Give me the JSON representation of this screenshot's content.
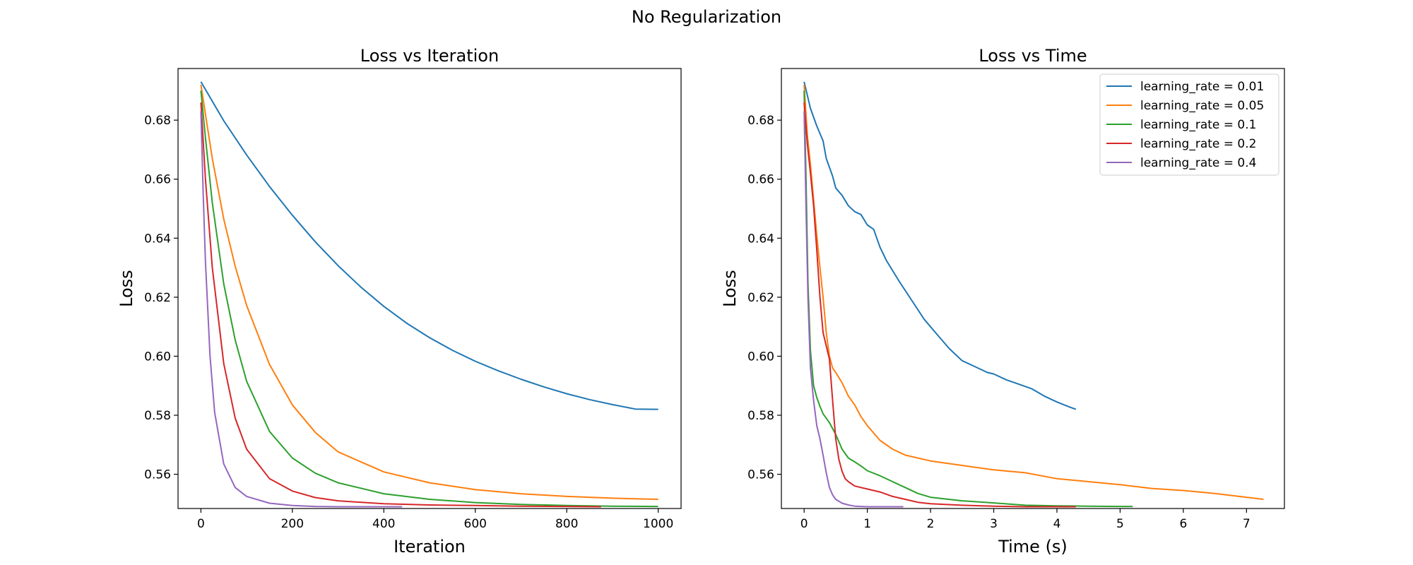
{
  "suptitle": "No Regularization",
  "colors": {
    "lr_0.01": "#1f77b4",
    "lr_0.05": "#ff7f0e",
    "lr_0.1": "#2ca02c",
    "lr_0.2": "#d62728",
    "lr_0.4": "#9467bd"
  },
  "chart_data": [
    {
      "type": "line",
      "title": "Loss vs Iteration",
      "xlabel": "Iteration",
      "ylabel": "Loss",
      "xlim": [
        -50,
        1050
      ],
      "ylim": [
        0.5484,
        0.6975
      ],
      "xticks": [
        0,
        200,
        400,
        600,
        800,
        1000
      ],
      "yticks": [
        0.56,
        0.58,
        0.6,
        0.62,
        0.64,
        0.66,
        0.68
      ],
      "grid": false,
      "legend": "none",
      "series": [
        {
          "name": "learning_rate = 0.01",
          "color": "#1f77b4",
          "x": [
            0,
            50,
            100,
            150,
            200,
            250,
            300,
            350,
            400,
            450,
            500,
            550,
            600,
            650,
            700,
            750,
            800,
            850,
            900,
            950,
            1000
          ],
          "y": [
            0.693,
            0.6798,
            0.6682,
            0.6575,
            0.6478,
            0.6388,
            0.6307,
            0.6234,
            0.6169,
            0.6112,
            0.6063,
            0.602,
            0.5983,
            0.5951,
            0.5922,
            0.5896,
            0.5873,
            0.5853,
            0.5836,
            0.5821,
            0.582
          ]
        },
        {
          "name": "learning_rate = 0.05",
          "color": "#ff7f0e",
          "x": [
            0,
            10,
            25,
            50,
            75,
            100,
            150,
            200,
            250,
            300,
            400,
            500,
            600,
            700,
            800,
            900,
            1000
          ],
          "y": [
            0.692,
            0.682,
            0.667,
            0.6465,
            0.6305,
            0.6172,
            0.5972,
            0.5835,
            0.5742,
            0.5676,
            0.5608,
            0.5571,
            0.5548,
            0.5534,
            0.5525,
            0.5519,
            0.5515
          ]
        },
        {
          "name": "learning_rate = 0.1",
          "color": "#2ca02c",
          "x": [
            0,
            10,
            25,
            50,
            75,
            100,
            150,
            200,
            250,
            300,
            400,
            500,
            600,
            700,
            800,
            900,
            1000
          ],
          "y": [
            0.69,
            0.674,
            0.652,
            0.6245,
            0.6055,
            0.5915,
            0.5745,
            0.5655,
            0.5604,
            0.5571,
            0.5534,
            0.5515,
            0.5504,
            0.5498,
            0.5494,
            0.5492,
            0.5491
          ]
        },
        {
          "name": "learning_rate = 0.2",
          "color": "#d62728",
          "x": [
            0,
            10,
            25,
            50,
            75,
            100,
            150,
            200,
            250,
            300,
            400,
            500,
            600,
            700,
            875
          ],
          "y": [
            0.686,
            0.66,
            0.63,
            0.5975,
            0.579,
            0.5685,
            0.5585,
            0.5543,
            0.5521,
            0.551,
            0.55,
            0.5496,
            0.5494,
            0.5492,
            0.549
          ]
        },
        {
          "name": "learning_rate = 0.4",
          "color": "#9467bd",
          "x": [
            0,
            5,
            10,
            20,
            30,
            50,
            75,
            100,
            150,
            200,
            250,
            300,
            350,
            400,
            440
          ],
          "y": [
            0.683,
            0.655,
            0.632,
            0.6,
            0.581,
            0.5635,
            0.5555,
            0.5525,
            0.5502,
            0.5494,
            0.5491,
            0.549,
            0.549,
            0.549,
            0.549
          ]
        }
      ]
    },
    {
      "type": "line",
      "title": "Loss vs Time",
      "xlabel": "Time (s)",
      "ylabel": "Loss",
      "xlim": [
        -0.36,
        7.6
      ],
      "ylim": [
        0.5484,
        0.6975
      ],
      "xticks": [
        0,
        1,
        2,
        3,
        4,
        5,
        6,
        7
      ],
      "yticks": [
        0.56,
        0.58,
        0.6,
        0.62,
        0.64,
        0.66,
        0.68
      ],
      "grid": false,
      "legend": "top-right",
      "series": [
        {
          "name": "learning_rate = 0.01",
          "color": "#1f77b4",
          "x": [
            0,
            0.1,
            0.2,
            0.3,
            0.35,
            0.45,
            0.5,
            0.6,
            0.7,
            0.8,
            0.9,
            1.0,
            1.1,
            1.2,
            1.3,
            1.5,
            1.7,
            1.9,
            2.1,
            2.3,
            2.5,
            2.7,
            2.9,
            3.0,
            3.2,
            3.4,
            3.6,
            3.8,
            4.0,
            4.2,
            4.3
          ],
          "y": [
            0.693,
            0.684,
            0.678,
            0.673,
            0.667,
            0.661,
            0.657,
            0.6545,
            0.651,
            0.649,
            0.648,
            0.6445,
            0.643,
            0.637,
            0.6325,
            0.6255,
            0.619,
            0.6125,
            0.6075,
            0.6025,
            0.5985,
            0.5965,
            0.5945,
            0.594,
            0.592,
            0.5905,
            0.589,
            0.5865,
            0.5845,
            0.5828,
            0.582
          ]
        },
        {
          "name": "learning_rate = 0.05",
          "color": "#ff7f0e",
          "x": [
            0,
            0.05,
            0.1,
            0.15,
            0.2,
            0.25,
            0.3,
            0.35,
            0.4,
            0.45,
            0.5,
            0.6,
            0.7,
            0.8,
            0.9,
            1.0,
            1.2,
            1.4,
            1.6,
            2.0,
            2.5,
            3.0,
            3.5,
            4.0,
            4.5,
            5.0,
            5.5,
            6.0,
            6.5,
            7.0,
            7.27
          ],
          "y": [
            0.692,
            0.675,
            0.665,
            0.653,
            0.641,
            0.63,
            0.62,
            0.608,
            0.6,
            0.596,
            0.5945,
            0.591,
            0.5865,
            0.5835,
            0.5795,
            0.5765,
            0.5715,
            0.5685,
            0.5665,
            0.5645,
            0.563,
            0.5615,
            0.5605,
            0.5585,
            0.5575,
            0.5565,
            0.5552,
            0.5545,
            0.5535,
            0.5522,
            0.5515
          ]
        },
        {
          "name": "learning_rate = 0.1",
          "color": "#2ca02c",
          "x": [
            0,
            0.03,
            0.06,
            0.1,
            0.15,
            0.2,
            0.25,
            0.3,
            0.4,
            0.5,
            0.6,
            0.7,
            0.8,
            0.9,
            1.0,
            1.2,
            1.4,
            1.6,
            1.8,
            2.0,
            2.5,
            3.0,
            3.5,
            4.0,
            4.5,
            5.0,
            5.2
          ],
          "y": [
            0.69,
            0.66,
            0.625,
            0.602,
            0.59,
            0.586,
            0.583,
            0.5805,
            0.5775,
            0.5735,
            0.5685,
            0.5655,
            0.5642,
            0.5628,
            0.5612,
            0.5595,
            0.5575,
            0.5555,
            0.5535,
            0.5522,
            0.551,
            0.5503,
            0.5495,
            0.5493,
            0.5492,
            0.5491,
            0.5491
          ]
        },
        {
          "name": "learning_rate = 0.2",
          "color": "#d62728",
          "x": [
            0,
            0.05,
            0.1,
            0.15,
            0.2,
            0.25,
            0.3,
            0.35,
            0.4,
            0.45,
            0.5,
            0.55,
            0.6,
            0.65,
            0.7,
            0.8,
            0.9,
            1.0,
            1.2,
            1.4,
            1.6,
            1.8,
            2.0,
            2.5,
            3.0,
            3.5,
            4.0,
            4.3
          ],
          "y": [
            0.686,
            0.672,
            0.662,
            0.651,
            0.636,
            0.62,
            0.608,
            0.6035,
            0.599,
            0.585,
            0.572,
            0.565,
            0.561,
            0.5585,
            0.5575,
            0.556,
            0.5555,
            0.555,
            0.554,
            0.5525,
            0.5515,
            0.5505,
            0.55,
            0.5495,
            0.5492,
            0.549,
            0.549,
            0.549
          ]
        },
        {
          "name": "learning_rate = 0.4",
          "color": "#9467bd",
          "x": [
            0,
            0.03,
            0.06,
            0.1,
            0.15,
            0.2,
            0.25,
            0.3,
            0.35,
            0.4,
            0.45,
            0.5,
            0.6,
            0.7,
            0.8,
            1.0,
            1.2,
            1.4,
            1.57
          ],
          "y": [
            0.683,
            0.65,
            0.62,
            0.596,
            0.585,
            0.5765,
            0.572,
            0.5665,
            0.5605,
            0.5555,
            0.553,
            0.5515,
            0.5502,
            0.5496,
            0.5492,
            0.549,
            0.549,
            0.549,
            0.549
          ]
        }
      ]
    }
  ]
}
